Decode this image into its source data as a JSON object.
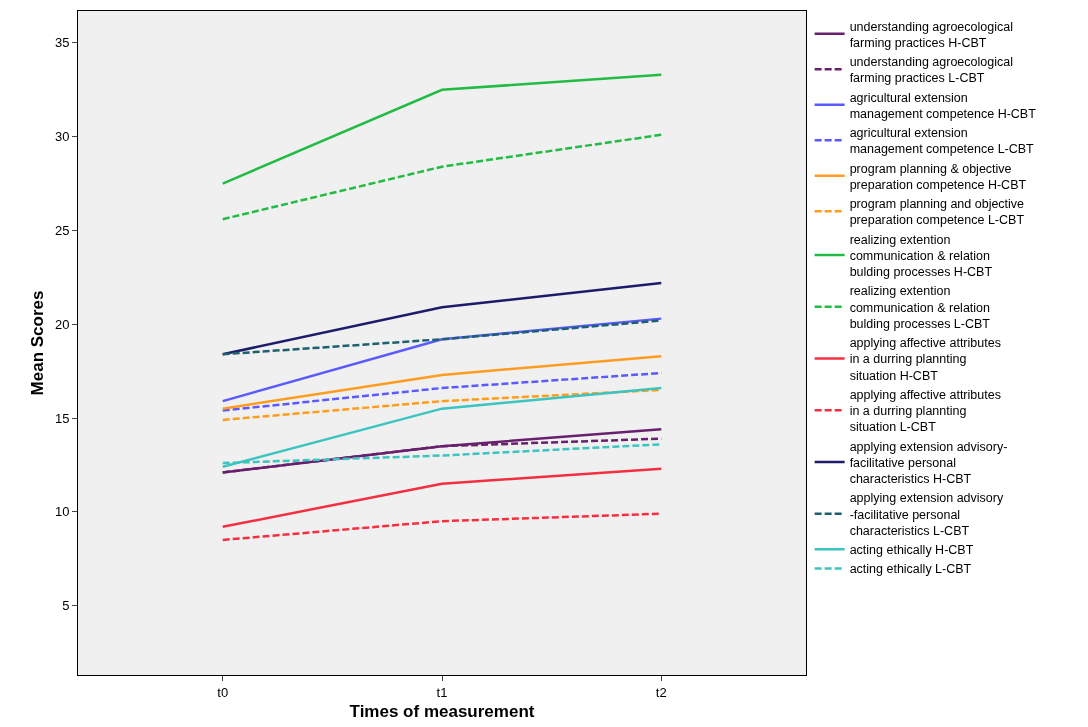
{
  "chart_data": {
    "type": "line",
    "xlabel": "Times of measurement",
    "ylabel": "Mean Scores",
    "categories": [
      "t0",
      "t1",
      "t2"
    ],
    "ylim": [
      1.3,
      36.7
    ],
    "yticks": [
      5,
      10,
      15,
      20,
      25,
      30,
      35
    ],
    "grid": false,
    "legend": "right",
    "marker": "none",
    "series": [
      {
        "name": "understanding agroecological farming practices H-CBT",
        "color": "#68206e",
        "line_style": "solid",
        "values": [
          12.1,
          13.5,
          14.4
        ]
      },
      {
        "name": "understanding agroecological farming practices L-CBT",
        "color": "#68206e",
        "line_style": "dashed",
        "values": [
          12.1,
          13.5,
          13.9
        ]
      },
      {
        "name": "agricultural extension management competence H-CBT",
        "color": "#5a5aff",
        "line_style": "solid",
        "values": [
          15.9,
          19.2,
          20.3
        ]
      },
      {
        "name": "agricultural extension management competence L-CBT",
        "color": "#5a5aff",
        "line_style": "dashed",
        "values": [
          15.4,
          16.6,
          17.4
        ]
      },
      {
        "name": "program planning & objective preparation competence H-CBT",
        "color": "#ff9c20",
        "line_style": "solid",
        "values": [
          15.5,
          17.3,
          18.3
        ]
      },
      {
        "name": "program planning and objective preparation competence L-CBT",
        "color": "#ff9c20",
        "line_style": "dashed",
        "values": [
          14.9,
          15.9,
          16.5
        ]
      },
      {
        "name": "realizing extention communication & relation bulding processes H-CBT",
        "color": "#22bb44",
        "line_style": "solid",
        "values": [
          27.5,
          32.5,
          33.3
        ]
      },
      {
        "name": "realizing extention communication & relation bulding processes L-CBT",
        "color": "#22bb44",
        "line_style": "dashed",
        "values": [
          25.6,
          28.4,
          30.1
        ]
      },
      {
        "name": "applying affective attributes in a durring plannting situation H-CBT",
        "color": "#f43040",
        "line_style": "solid",
        "values": [
          9.2,
          11.5,
          12.3
        ]
      },
      {
        "name": "applying affective attributes in a durring plannting situation L-CBT",
        "color": "#f43040",
        "line_style": "dashed",
        "values": [
          8.5,
          9.5,
          9.9
        ]
      },
      {
        "name": "applying extension advisory-facilitative personal characteristics H-CBT",
        "color": "#1c1c6b",
        "line_style": "solid",
        "values": [
          18.4,
          20.9,
          22.2
        ]
      },
      {
        "name": "applying extension advisory -facilitative personal characteristics L-CBT",
        "color": "#1e5f70",
        "line_style": "dashed",
        "values": [
          18.4,
          19.2,
          20.2
        ]
      },
      {
        "name": "acting ethically H-CBT",
        "color": "#3cc4c0",
        "line_style": "solid",
        "values": [
          12.4,
          15.5,
          16.6
        ]
      },
      {
        "name": "acting ethically L-CBT",
        "color": "#3cc4c0",
        "line_style": "dashed",
        "values": [
          12.6,
          13.0,
          13.6
        ]
      }
    ]
  }
}
